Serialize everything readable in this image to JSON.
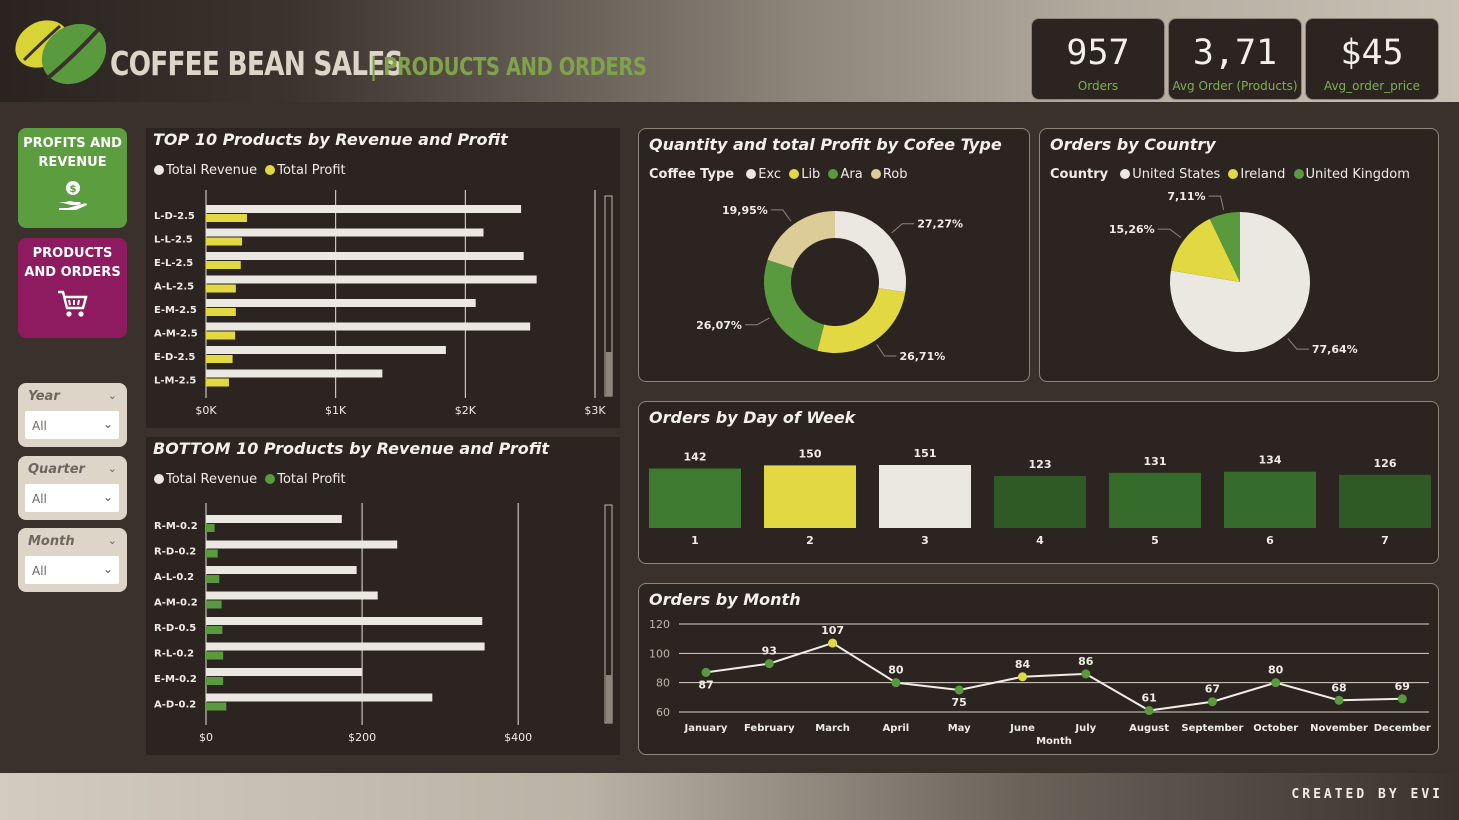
{
  "header": {
    "title": "COFFEE BEAN SALES",
    "subtitle": "| PRODUCTS AND ORDERS",
    "kpis": [
      {
        "value": "957",
        "label": "Orders"
      },
      {
        "value": "3,71",
        "label": "Avg Order (Products)"
      },
      {
        "value": "$45",
        "label": "Avg_order_price"
      }
    ]
  },
  "nav": {
    "profits_label_1": "PROFITS AND",
    "profits_label_2": "REVENUE",
    "products_label_1": "PRODUCTS",
    "products_label_2": "AND ORDERS"
  },
  "slicers": [
    {
      "title": "Year",
      "value": "All"
    },
    {
      "title": "Quarter",
      "value": "All"
    },
    {
      "title": "Month",
      "value": "All"
    }
  ],
  "footer": {
    "credit": "CREATED BY EVI"
  },
  "colors": {
    "white": "#ebe8e1",
    "yellow": "#e1d842",
    "green": "#5a9a3e",
    "tan": "#dccd98",
    "darkgreen": "#2f5a26"
  },
  "chart_data": [
    {
      "id": "top10",
      "type": "bar",
      "title": "TOP 10 Products by Revenue and Profit",
      "categories": [
        "L-D-2.5",
        "L-L-2.5",
        "E-L-2.5",
        "A-L-2.5",
        "E-M-2.5",
        "A-M-2.5",
        "E-D-2.5",
        "L-M-2.5"
      ],
      "series": [
        {
          "name": "Total Revenue",
          "values": [
            2430,
            2140,
            2450,
            2550,
            2080,
            2500,
            1850,
            1360
          ]
        },
        {
          "name": "Total Profit",
          "values": [
            316,
            278,
            268,
            230,
            230,
            225,
            205,
            177
          ]
        }
      ],
      "xticks": [
        "$0K",
        "$1K",
        "$2K",
        "$3K"
      ],
      "xlim": [
        0,
        3000
      ]
    },
    {
      "id": "bottom10",
      "type": "bar",
      "title": "BOTTOM 10 Products by Revenue and Profit",
      "categories": [
        "R-M-0.2",
        "R-D-0.2",
        "A-L-0.2",
        "A-M-0.2",
        "R-D-0.5",
        "R-L-0.2",
        "E-M-0.2",
        "A-D-0.2"
      ],
      "series": [
        {
          "name": "Total Revenue",
          "values": [
            174,
            245,
            193,
            220,
            354,
            357,
            200,
            290
          ]
        },
        {
          "name": "Total Profit",
          "values": [
            11,
            15,
            17,
            20,
            21,
            22,
            22,
            26
          ]
        }
      ],
      "xticks": [
        "$0",
        "$200",
        "$400"
      ],
      "xlim": [
        0,
        460
      ]
    },
    {
      "id": "coffee_type",
      "type": "pie",
      "title": "Quantity and total Profit by Cofee Type",
      "legend_title": "Coffee Type",
      "labels": [
        "Exc",
        "Lib",
        "Ara",
        "Rob"
      ],
      "values": [
        27.27,
        26.71,
        26.07,
        19.95
      ],
      "value_labels": [
        "27,27%",
        "26,71%",
        "26,07%",
        "19,95%"
      ]
    },
    {
      "id": "country",
      "type": "pie",
      "title": "Orders by Country",
      "legend_title": "Country",
      "labels": [
        "United States",
        "Ireland",
        "United Kingdom"
      ],
      "values": [
        77.64,
        15.26,
        7.11
      ],
      "value_labels": [
        "77,64%",
        "15,26%",
        "7,11%"
      ]
    },
    {
      "id": "day_of_week",
      "type": "bar",
      "title": "Orders by Day of Week",
      "categories": [
        "1",
        "2",
        "3",
        "4",
        "5",
        "6",
        "7"
      ],
      "values": [
        142,
        150,
        151,
        123,
        131,
        134,
        126
      ]
    },
    {
      "id": "month",
      "type": "line",
      "title": "Orders by Month",
      "xlabel": "Month",
      "categories": [
        "January",
        "February",
        "March",
        "April",
        "May",
        "June",
        "July",
        "August",
        "September",
        "October",
        "November",
        "December"
      ],
      "values": [
        87,
        93,
        107,
        80,
        75,
        84,
        86,
        61,
        67,
        80,
        68,
        69
      ],
      "yticks": [
        "120",
        "100",
        "80",
        "60"
      ],
      "ylim": [
        56,
        120
      ]
    }
  ]
}
